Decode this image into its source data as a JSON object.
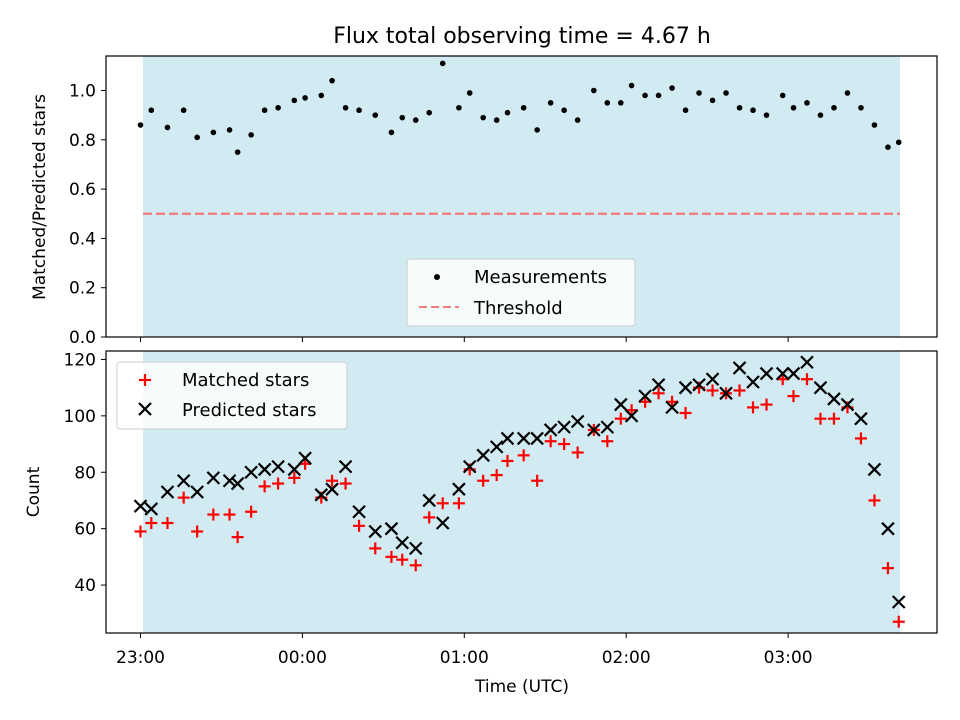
{
  "chart_data": {
    "title": "Flux total observing time = 4.67 h",
    "xlabel": "Time (UTC)",
    "x_tick_labels": [
      "23:00",
      "00:00",
      "01:00",
      "02:00",
      "03:00"
    ],
    "colors": {
      "shade": "#add8e6",
      "threshold": "#f07b7b",
      "matched": "#ff0000",
      "predicted": "#000000",
      "measurements": "#000000"
    },
    "shaded_span": [
      "23:00",
      "03:42"
    ],
    "top": {
      "type": "scatter",
      "ylabel": "Matched/Predicted stars",
      "ylim": [
        0.0,
        1.14
      ],
      "y_ticks": [
        "0.0",
        "0.2",
        "0.4",
        "0.6",
        "0.8",
        "1.0"
      ],
      "threshold": 0.5,
      "legend": [
        "Measurements",
        "Threshold"
      ],
      "legend_position": "lower center",
      "series": [
        {
          "name": "Measurements",
          "x": [
            "23:00",
            "23:04",
            "23:10",
            "23:16",
            "23:21",
            "23:27",
            "23:33",
            "23:36",
            "23:41",
            "23:46",
            "23:51",
            "23:57",
            "00:01",
            "00:07",
            "00:11",
            "00:16",
            "00:21",
            "00:27",
            "00:33",
            "00:37",
            "00:42",
            "00:47",
            "00:52",
            "00:58",
            "01:02",
            "01:07",
            "01:12",
            "01:16",
            "01:22",
            "01:27",
            "01:32",
            "01:37",
            "01:42",
            "01:48",
            "01:53",
            "01:58",
            "02:02",
            "02:07",
            "02:12",
            "02:17",
            "02:22",
            "02:27",
            "02:32",
            "02:37",
            "02:42",
            "02:47",
            "02:52",
            "02:58",
            "03:02",
            "03:07",
            "03:12",
            "03:17",
            "03:22",
            "03:27",
            "03:32",
            "03:37",
            "03:41"
          ],
          "y": [
            0.86,
            0.92,
            0.85,
            0.92,
            0.81,
            0.83,
            0.84,
            0.75,
            0.82,
            0.92,
            0.93,
            0.96,
            0.97,
            0.98,
            1.04,
            0.93,
            0.92,
            0.9,
            0.83,
            0.89,
            0.88,
            0.91,
            1.11,
            0.93,
            0.99,
            0.89,
            0.88,
            0.91,
            0.93,
            0.84,
            0.95,
            0.92,
            0.88,
            1.0,
            0.95,
            0.95,
            1.02,
            0.98,
            0.98,
            1.01,
            0.92,
            0.99,
            0.96,
            0.99,
            0.93,
            0.92,
            0.9,
            0.98,
            0.93,
            0.95,
            0.9,
            0.93,
            0.99,
            0.93,
            0.86,
            0.77,
            0.79
          ]
        }
      ]
    },
    "bottom": {
      "type": "scatter",
      "ylabel": "Count",
      "ylim": [
        23,
        123
      ],
      "y_ticks": [
        "40",
        "60",
        "80",
        "100",
        "120"
      ],
      "legend": [
        "Matched stars",
        "Predicted stars"
      ],
      "legend_position": "upper left",
      "series": [
        {
          "name": "Matched stars",
          "marker": "+",
          "x": [
            "23:00",
            "23:04",
            "23:10",
            "23:16",
            "23:21",
            "23:27",
            "23:33",
            "23:36",
            "23:41",
            "23:46",
            "23:51",
            "23:57",
            "00:01",
            "00:07",
            "00:11",
            "00:16",
            "00:21",
            "00:27",
            "00:33",
            "00:37",
            "00:42",
            "00:47",
            "00:52",
            "00:58",
            "01:02",
            "01:07",
            "01:12",
            "01:16",
            "01:22",
            "01:27",
            "01:32",
            "01:37",
            "01:42",
            "01:48",
            "01:53",
            "01:58",
            "02:02",
            "02:07",
            "02:12",
            "02:17",
            "02:22",
            "02:27",
            "02:32",
            "02:37",
            "02:42",
            "02:47",
            "02:52",
            "02:58",
            "03:02",
            "03:07",
            "03:12",
            "03:17",
            "03:22",
            "03:27",
            "03:32",
            "03:37",
            "03:41"
          ],
          "y": [
            59,
            62,
            62,
            71,
            59,
            65,
            65,
            57,
            66,
            75,
            76,
            78,
            83,
            71,
            77,
            76,
            61,
            53,
            50,
            49,
            47,
            64,
            69,
            69,
            81,
            77,
            79,
            84,
            86,
            77,
            91,
            90,
            87,
            95,
            91,
            99,
            102,
            105,
            108,
            105,
            101,
            110,
            109,
            108,
            109,
            103,
            104,
            113,
            107,
            113,
            99,
            99,
            103,
            92,
            70,
            46,
            27
          ]
        },
        {
          "name": "Predicted stars",
          "marker": "x",
          "x": [
            "23:00",
            "23:04",
            "23:10",
            "23:16",
            "23:21",
            "23:27",
            "23:33",
            "23:36",
            "23:41",
            "23:46",
            "23:51",
            "23:57",
            "00:01",
            "00:07",
            "00:11",
            "00:16",
            "00:21",
            "00:27",
            "00:33",
            "00:37",
            "00:42",
            "00:47",
            "00:52",
            "00:58",
            "01:02",
            "01:07",
            "01:12",
            "01:16",
            "01:22",
            "01:27",
            "01:32",
            "01:37",
            "01:42",
            "01:48",
            "01:53",
            "01:58",
            "02:02",
            "02:07",
            "02:12",
            "02:17",
            "02:22",
            "02:27",
            "02:32",
            "02:37",
            "02:42",
            "02:47",
            "02:52",
            "02:58",
            "03:02",
            "03:07",
            "03:12",
            "03:17",
            "03:22",
            "03:27",
            "03:32",
            "03:37",
            "03:41"
          ],
          "y": [
            68,
            67,
            73,
            77,
            73,
            78,
            77,
            76,
            80,
            81,
            82,
            81,
            85,
            72,
            74,
            82,
            66,
            59,
            60,
            55,
            53,
            70,
            62,
            74,
            82,
            86,
            89,
            92,
            92,
            92,
            95,
            96,
            98,
            95,
            96,
            104,
            100,
            107,
            111,
            103,
            110,
            111,
            113,
            108,
            117,
            112,
            115,
            115,
            115,
            119,
            110,
            106,
            104,
            99,
            81,
            60,
            34
          ]
        }
      ]
    }
  }
}
